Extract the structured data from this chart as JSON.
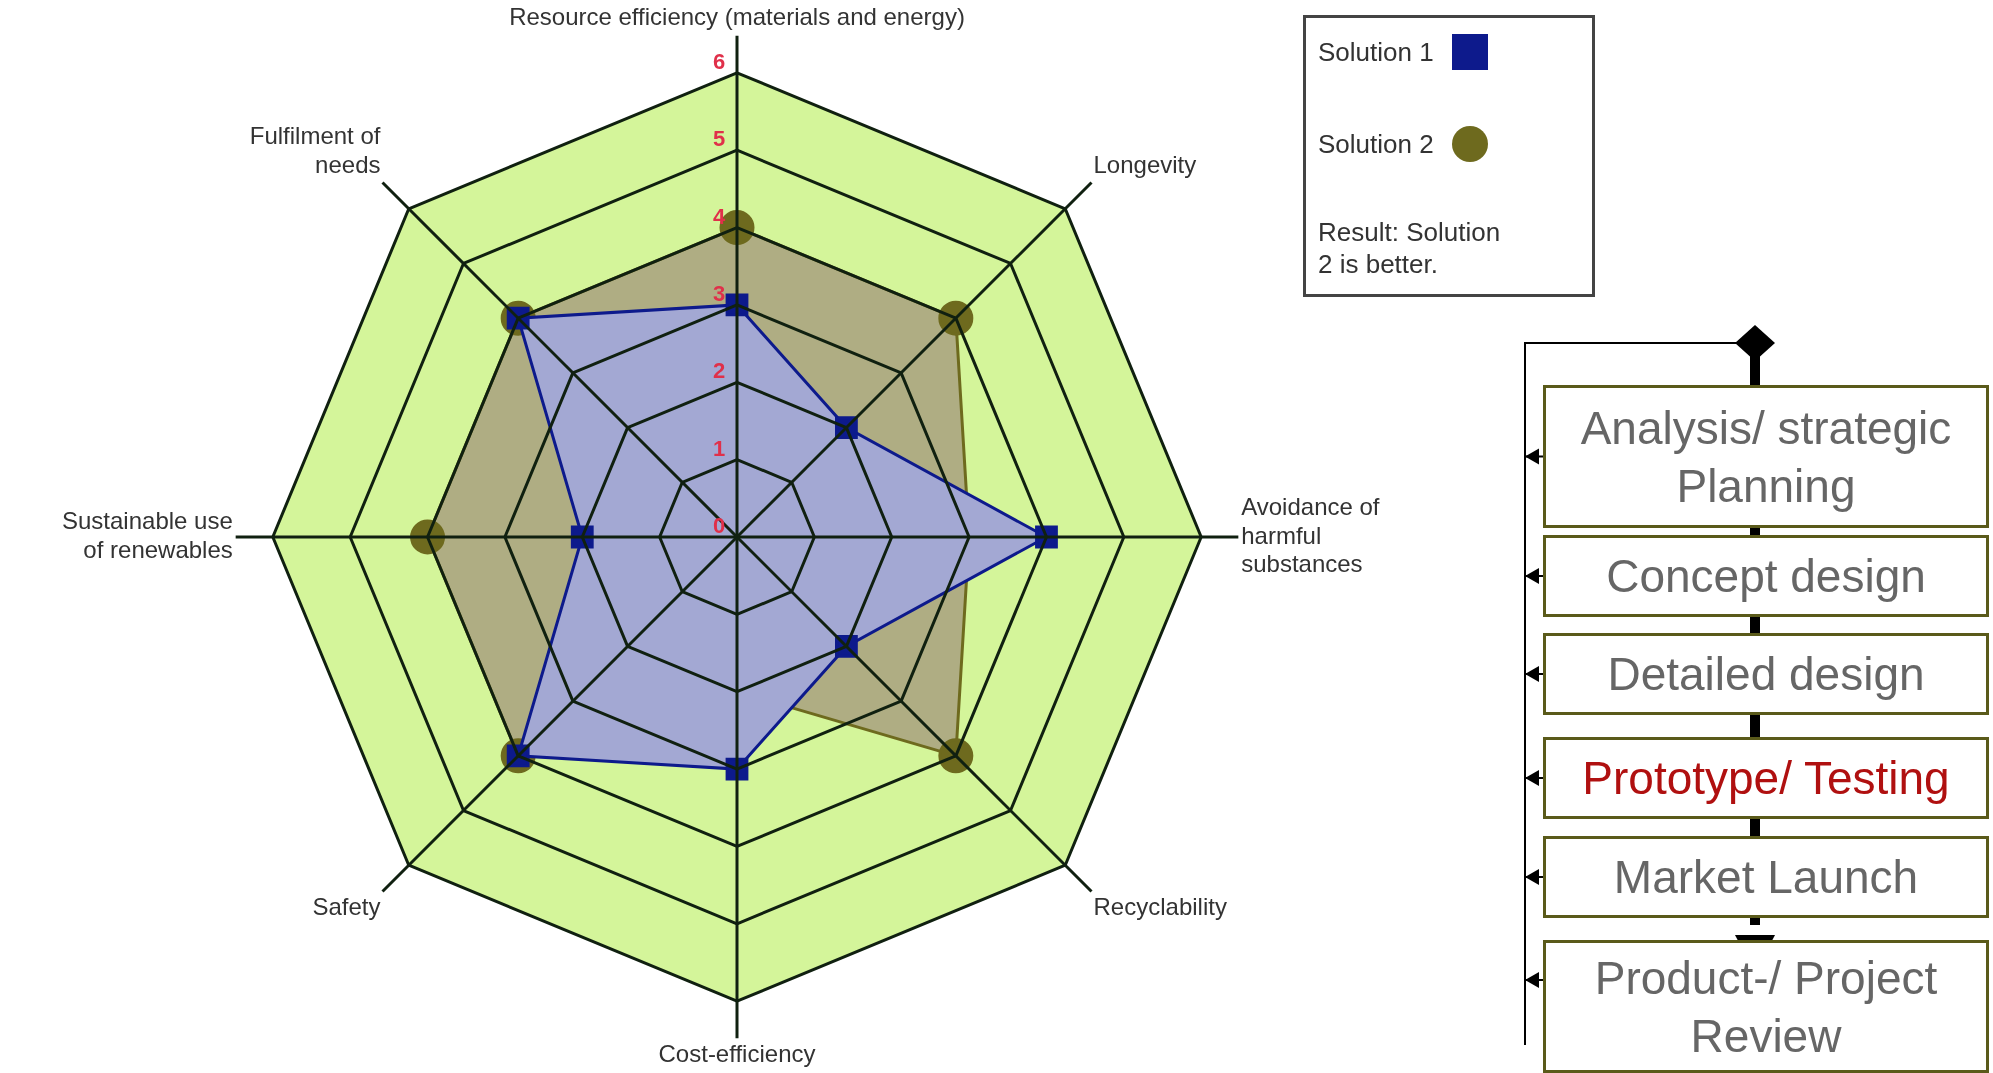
{
  "chart_data": {
    "type": "radar",
    "categories": [
      "Resource efficiency (materials and energy)",
      "Longevity",
      "Avoidance of harmful substances",
      "Recyclability",
      "Cost-efficiency",
      "Safety",
      "Sustainable use of renewables",
      "Fulfilment of needs"
    ],
    "series": [
      {
        "name": "Solution 1",
        "color": "#0d1a8c",
        "values": [
          3,
          2,
          4,
          2,
          3,
          4,
          2,
          4
        ]
      },
      {
        "name": "Solution 2",
        "color": "#6e6a1e",
        "values": [
          4,
          4,
          3,
          4,
          2,
          4,
          4,
          4
        ]
      }
    ],
    "ylim": [
      0,
      6
    ],
    "yticks": [
      0,
      1,
      2,
      3,
      4,
      5,
      6
    ],
    "grid": true,
    "legend": "top right",
    "annotations": [
      "Result: Solution 2 is better.",
      "Analysis/ strategic Planning",
      "Concept design",
      "Detailed design",
      "Prototype/ Testing",
      "Market Launch",
      "Product-/ Project Review"
    ]
  }
}
